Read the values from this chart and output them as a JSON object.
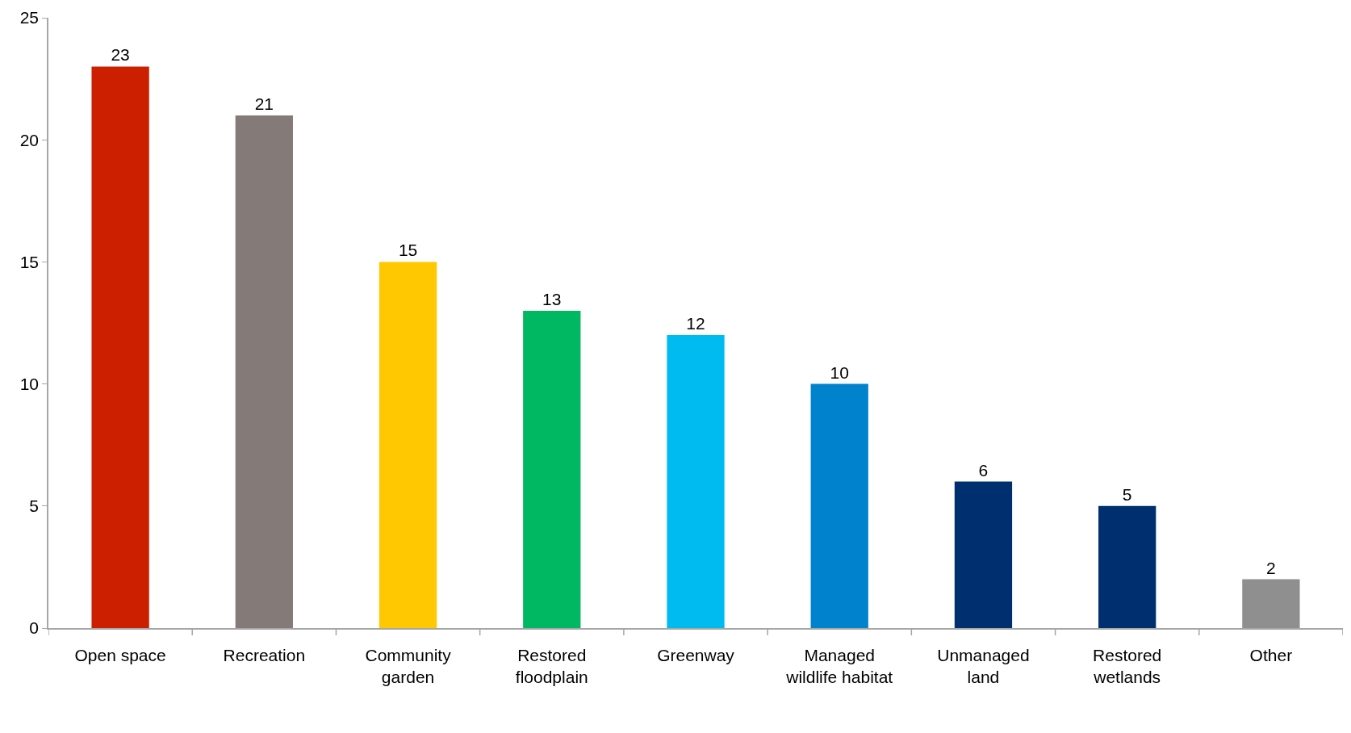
{
  "chart_data": {
    "type": "bar",
    "categories": [
      "Open space",
      "Recreation",
      "Community\ngarden",
      "Restored\nfloodplain",
      "Greenway",
      "Managed\nwildlife habitat",
      "Unmanaged\nland",
      "Restored\nwetlands",
      "Other"
    ],
    "values": [
      23,
      21,
      15,
      13,
      12,
      10,
      6,
      5,
      2
    ],
    "colors": [
      "#cc1f00",
      "#847a78",
      "#ffc800",
      "#00b862",
      "#00bbf0",
      "#0083cc",
      "#002f70",
      "#002f70",
      "#8f8f8f"
    ],
    "ylim": [
      0,
      25
    ],
    "yticks": [
      0,
      5,
      10,
      15,
      20,
      25
    ],
    "data_labels": true
  }
}
